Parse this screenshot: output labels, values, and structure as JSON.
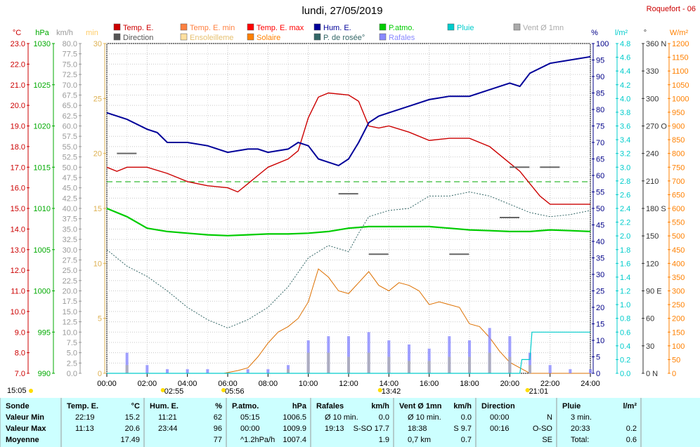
{
  "header": {
    "title": "lundi, 27/05/2019",
    "station": "Roquefort - 06"
  },
  "legend": [
    {
      "label": "Temp. E.",
      "color": "#cc0000"
    },
    {
      "label": "Temp. E. min",
      "color": "#ff8040"
    },
    {
      "label": "Temp. E. max",
      "color": "#ff0000"
    },
    {
      "label": "Hum. E.",
      "color": "#000099"
    },
    {
      "label": "P.atmo.",
      "color": "#00cc00"
    },
    {
      "label": "Pluie",
      "color": "#00cccc"
    },
    {
      "label": "Vent Ø 1mn",
      "color": "#aaaaaa"
    },
    {
      "label": "Direction",
      "color": "#555555"
    },
    {
      "label": "Ensoleilleme",
      "color": "#ffe0a0"
    },
    {
      "label": "Solaire",
      "color": "#ff8000"
    },
    {
      "label": "P. de rosée°",
      "color": "#336666"
    },
    {
      "label": "Rafales",
      "color": "#8888ff"
    }
  ],
  "axes": {
    "temp": {
      "unit": "°C",
      "ticks": [
        "23.0",
        "22.0",
        "21.0",
        "20.0",
        "19.0",
        "18.0",
        "17.0",
        "16.0",
        "15.0",
        "14.0",
        "13.0",
        "12.0",
        "11.0",
        "10.0",
        "9.0",
        "8.0",
        "7.0"
      ],
      "color": "#cc0000"
    },
    "pressure": {
      "unit": "hPa",
      "ticks": [
        "1030",
        "1025",
        "1020",
        "1015",
        "1010",
        "1005",
        "1000",
        "995",
        "990"
      ],
      "color": "#00aa00"
    },
    "wind": {
      "unit": "km/h",
      "ticks": [
        "80.0",
        "77.5",
        "75.0",
        "72.5",
        "70.0",
        "67.5",
        "65.0",
        "62.5",
        "60.0",
        "57.5",
        "55.0",
        "52.5",
        "50.0",
        "47.5",
        "45.0",
        "42.5",
        "40.0",
        "37.5",
        "35.0",
        "32.5",
        "30.0",
        "27.5",
        "25.0",
        "22.5",
        "20.0",
        "17.5",
        "15.0",
        "12.5",
        "10.0",
        "7.5",
        "5.0",
        "2.5",
        "0.0"
      ],
      "color": "#999999"
    },
    "min": {
      "unit": "min",
      "ticks": [
        "30",
        "25",
        "20",
        "15",
        "10",
        "5",
        "0"
      ],
      "color": "#ffcc66"
    },
    "hum": {
      "unit": "%",
      "ticks": [
        "100",
        "95",
        "90",
        "85",
        "80",
        "75",
        "70",
        "65",
        "60",
        "55",
        "50",
        "45",
        "40",
        "35",
        "30",
        "25",
        "20",
        "15",
        "10",
        "5",
        "0"
      ],
      "color": "#000088"
    },
    "rain": {
      "unit": "l/m²",
      "ticks": [
        "4.8",
        "4.6",
        "4.4",
        "4.2",
        "4.0",
        "3.8",
        "3.6",
        "3.4",
        "3.2",
        "3.0",
        "2.8",
        "2.6",
        "2.4",
        "2.2",
        "2.0",
        "1.8",
        "1.6",
        "1.4",
        "1.2",
        "1.0",
        "0.8",
        "0.6",
        "0.4",
        "0.2",
        "0.0"
      ],
      "color": "#00cccc"
    },
    "dir": {
      "unit": "°",
      "ticks": [
        "360 N",
        "330",
        "300",
        "270 O",
        "240",
        "210",
        "180 S",
        "150",
        "120",
        "90  E",
        "60",
        "30",
        "0  N"
      ],
      "color": "#333333"
    },
    "solar": {
      "unit": "W/m²",
      "ticks": [
        "1200",
        "1150",
        "1100",
        "1050",
        "1000",
        "950",
        "900",
        "850",
        "800",
        "750",
        "700",
        "650",
        "600",
        "550",
        "500",
        "450",
        "400",
        "350",
        "300",
        "250",
        "200",
        "150",
        "100",
        "50",
        "0"
      ],
      "color": "#ff8000"
    },
    "x_ticks": [
      "00:00",
      "02:00",
      "04:00",
      "06:00",
      "08:00",
      "10:00",
      "12:00",
      "14:00",
      "16:00",
      "18:00",
      "20:00",
      "22:00",
      "24:00"
    ]
  },
  "markers": {
    "sunrise": "15:05",
    "m1": "02:55",
    "m2": "05:56",
    "m3": "13:42",
    "m4": "21:01"
  },
  "chart_data": {
    "type": "line",
    "x_unit": "hours",
    "xlim": [
      0,
      24
    ],
    "series": [
      {
        "name": "Temp. E.",
        "axis": "°C",
        "x": [
          0,
          0.5,
          1,
          2,
          3,
          4,
          5,
          6,
          6.5,
          7,
          7.5,
          8,
          9,
          9.5,
          10,
          10.5,
          11,
          12,
          12.5,
          13,
          13.5,
          14,
          15,
          16,
          17,
          18,
          19,
          20,
          20.5,
          21,
          21.5,
          22,
          23,
          24
        ],
        "y": [
          17.0,
          16.8,
          17.0,
          17.0,
          16.7,
          16.3,
          16.1,
          16.0,
          15.8,
          16.2,
          16.6,
          17.0,
          17.4,
          17.8,
          19.4,
          20.4,
          20.6,
          20.5,
          20.2,
          19.0,
          18.9,
          19.0,
          18.7,
          18.3,
          18.4,
          18.4,
          18.0,
          17.2,
          16.8,
          16.2,
          15.6,
          15.2,
          15.2,
          15.2
        ]
      },
      {
        "name": "Hum. E.",
        "axis": "%",
        "x": [
          0,
          1,
          2,
          2.5,
          3,
          4,
          5,
          6,
          7,
          7.5,
          8,
          9,
          9.5,
          10,
          10.5,
          11,
          11.5,
          12,
          12.5,
          13,
          13.5,
          14,
          15,
          16,
          17,
          18,
          19,
          20,
          20.5,
          21,
          22,
          23,
          24
        ],
        "y": [
          79,
          77,
          74,
          73,
          70,
          70,
          69,
          67,
          68,
          68,
          67,
          68,
          70,
          69,
          65,
          64,
          63,
          65,
          70,
          76,
          78,
          79,
          81,
          83,
          84,
          84,
          86,
          88,
          87,
          91,
          94,
          95,
          96
        ]
      },
      {
        "name": "P.atmo.",
        "axis": "hPa",
        "x": [
          0,
          1,
          2,
          3,
          4,
          5,
          6,
          7,
          8,
          9,
          10,
          11,
          12,
          13,
          14,
          15,
          16,
          17,
          18,
          19,
          20,
          21,
          22,
          23,
          24
        ],
        "y": [
          1010.0,
          1009.0,
          1007.6,
          1007.2,
          1007.0,
          1006.8,
          1006.7,
          1006.8,
          1006.9,
          1006.9,
          1007.0,
          1007.2,
          1007.6,
          1007.8,
          1007.8,
          1007.8,
          1007.8,
          1007.6,
          1007.4,
          1007.3,
          1007.2,
          1007.2,
          1007.4,
          1007.3,
          1007.2
        ]
      },
      {
        "name": "P. de rosée°",
        "axis": "°C",
        "x": [
          0,
          1,
          2,
          3,
          4,
          5,
          6,
          7,
          8,
          9,
          10,
          11,
          12,
          12.5,
          13,
          14,
          15,
          16,
          17,
          18,
          19,
          20,
          21,
          22,
          23,
          24
        ],
        "y": [
          13.0,
          12.2,
          11.7,
          11.0,
          10.2,
          9.6,
          9.2,
          9.6,
          10.2,
          11.2,
          12.6,
          13.2,
          12.9,
          13.8,
          14.6,
          14.9,
          15.0,
          15.6,
          15.6,
          15.8,
          15.6,
          15.2,
          14.8,
          14.6,
          14.7,
          14.9
        ]
      },
      {
        "name": "Solaire",
        "axis": "W/m²",
        "x": [
          0,
          5.8,
          6.5,
          7,
          7.5,
          8,
          8.5,
          9,
          9.5,
          10,
          10.5,
          11,
          11.5,
          12,
          12.5,
          13,
          13.5,
          14,
          14.5,
          15,
          15.5,
          16,
          16.5,
          17,
          17.5,
          18,
          18.5,
          19,
          19.5,
          20,
          20.5,
          21,
          24
        ],
        "y": [
          0,
          0,
          10,
          20,
          60,
          110,
          150,
          170,
          200,
          260,
          380,
          350,
          300,
          290,
          330,
          370,
          320,
          300,
          330,
          320,
          300,
          250,
          260,
          250,
          240,
          180,
          170,
          130,
          80,
          40,
          20,
          0,
          0
        ]
      },
      {
        "name": "Rafales",
        "axis": "km/h",
        "x": [
          0,
          1,
          2,
          3,
          4,
          5,
          6,
          7,
          8,
          9,
          10,
          11,
          12,
          13,
          14,
          15,
          16,
          17,
          18,
          19,
          20,
          21,
          22,
          23,
          24
        ],
        "y": [
          0,
          5,
          2,
          1,
          1,
          1,
          0,
          1,
          1,
          2,
          8,
          9,
          9,
          10,
          8,
          7,
          6,
          9,
          8,
          11,
          9,
          5,
          2,
          1,
          1
        ]
      },
      {
        "name": "Vent Ø 1mn",
        "axis": "km/h",
        "x": [
          0,
          1,
          2,
          3,
          4,
          5,
          6,
          7,
          8,
          9,
          10,
          11,
          12,
          13,
          14,
          15,
          16,
          17,
          18,
          19,
          20,
          21,
          22,
          23,
          24
        ],
        "y": [
          0,
          2,
          0,
          0,
          0,
          0,
          0,
          0,
          0,
          1,
          5,
          5,
          4,
          5,
          4,
          3,
          3,
          4,
          4,
          5,
          4,
          2,
          0,
          0,
          0
        ]
      },
      {
        "name": "Direction",
        "axis": "°",
        "x": [
          0.5,
          11.5,
          13,
          17,
          19.5,
          20,
          21.5
        ],
        "y": [
          240,
          196,
          130,
          130,
          170,
          225,
          225
        ]
      },
      {
        "name": "Pluie",
        "axis": "l/m²",
        "x": [
          0,
          20.5,
          20.6,
          21,
          21.1,
          24
        ],
        "y": [
          0,
          0,
          0.2,
          0.2,
          0.6,
          0.6
        ]
      }
    ]
  },
  "summary": {
    "columns": [
      {
        "title": "Sonde",
        "unit": "",
        "rows": [
          "Valeur Min",
          "Valeur Max",
          "Moyenne"
        ]
      },
      {
        "title": "Temp. E.",
        "unit": "°C",
        "rows": [
          [
            "22:19",
            "15.2"
          ],
          [
            "11:13",
            "20.6"
          ],
          [
            "",
            "17.49"
          ]
        ]
      },
      {
        "title": "Hum. E.",
        "unit": "%",
        "rows": [
          [
            "11:21",
            "62"
          ],
          [
            "23:44",
            "96"
          ],
          [
            "",
            "77"
          ]
        ]
      },
      {
        "title": "P.atmo.",
        "unit": "hPa",
        "rows": [
          [
            "05:15",
            "1006.5"
          ],
          [
            "00:00",
            "1009.9"
          ],
          [
            "^1.2hPa/h",
            "1007.4"
          ]
        ]
      },
      {
        "title": "Rafales",
        "unit": "km/h",
        "rows": [
          [
            "Ø 10 min.",
            "0.0"
          ],
          [
            "19:13",
            "S-SO 17.7"
          ],
          [
            "",
            "1.9"
          ]
        ]
      },
      {
        "title": "Vent Ø 1mn",
        "unit": "km/h",
        "rows": [
          [
            "Ø 10 min.",
            "0.0"
          ],
          [
            "18:38",
            "S 9.7"
          ],
          [
            "0,7 km",
            "0.7"
          ]
        ]
      },
      {
        "title": "Direction",
        "unit": "",
        "rows": [
          [
            "00:00",
            "N"
          ],
          [
            "00:16",
            "O-SO"
          ],
          [
            "",
            "SE"
          ]
        ]
      },
      {
        "title": "Pluie",
        "unit": "l/m²",
        "rows": [
          [
            "3 min.",
            ""
          ],
          [
            "20:33",
            "0.2"
          ],
          [
            "Total:",
            "0.6"
          ]
        ]
      }
    ]
  }
}
